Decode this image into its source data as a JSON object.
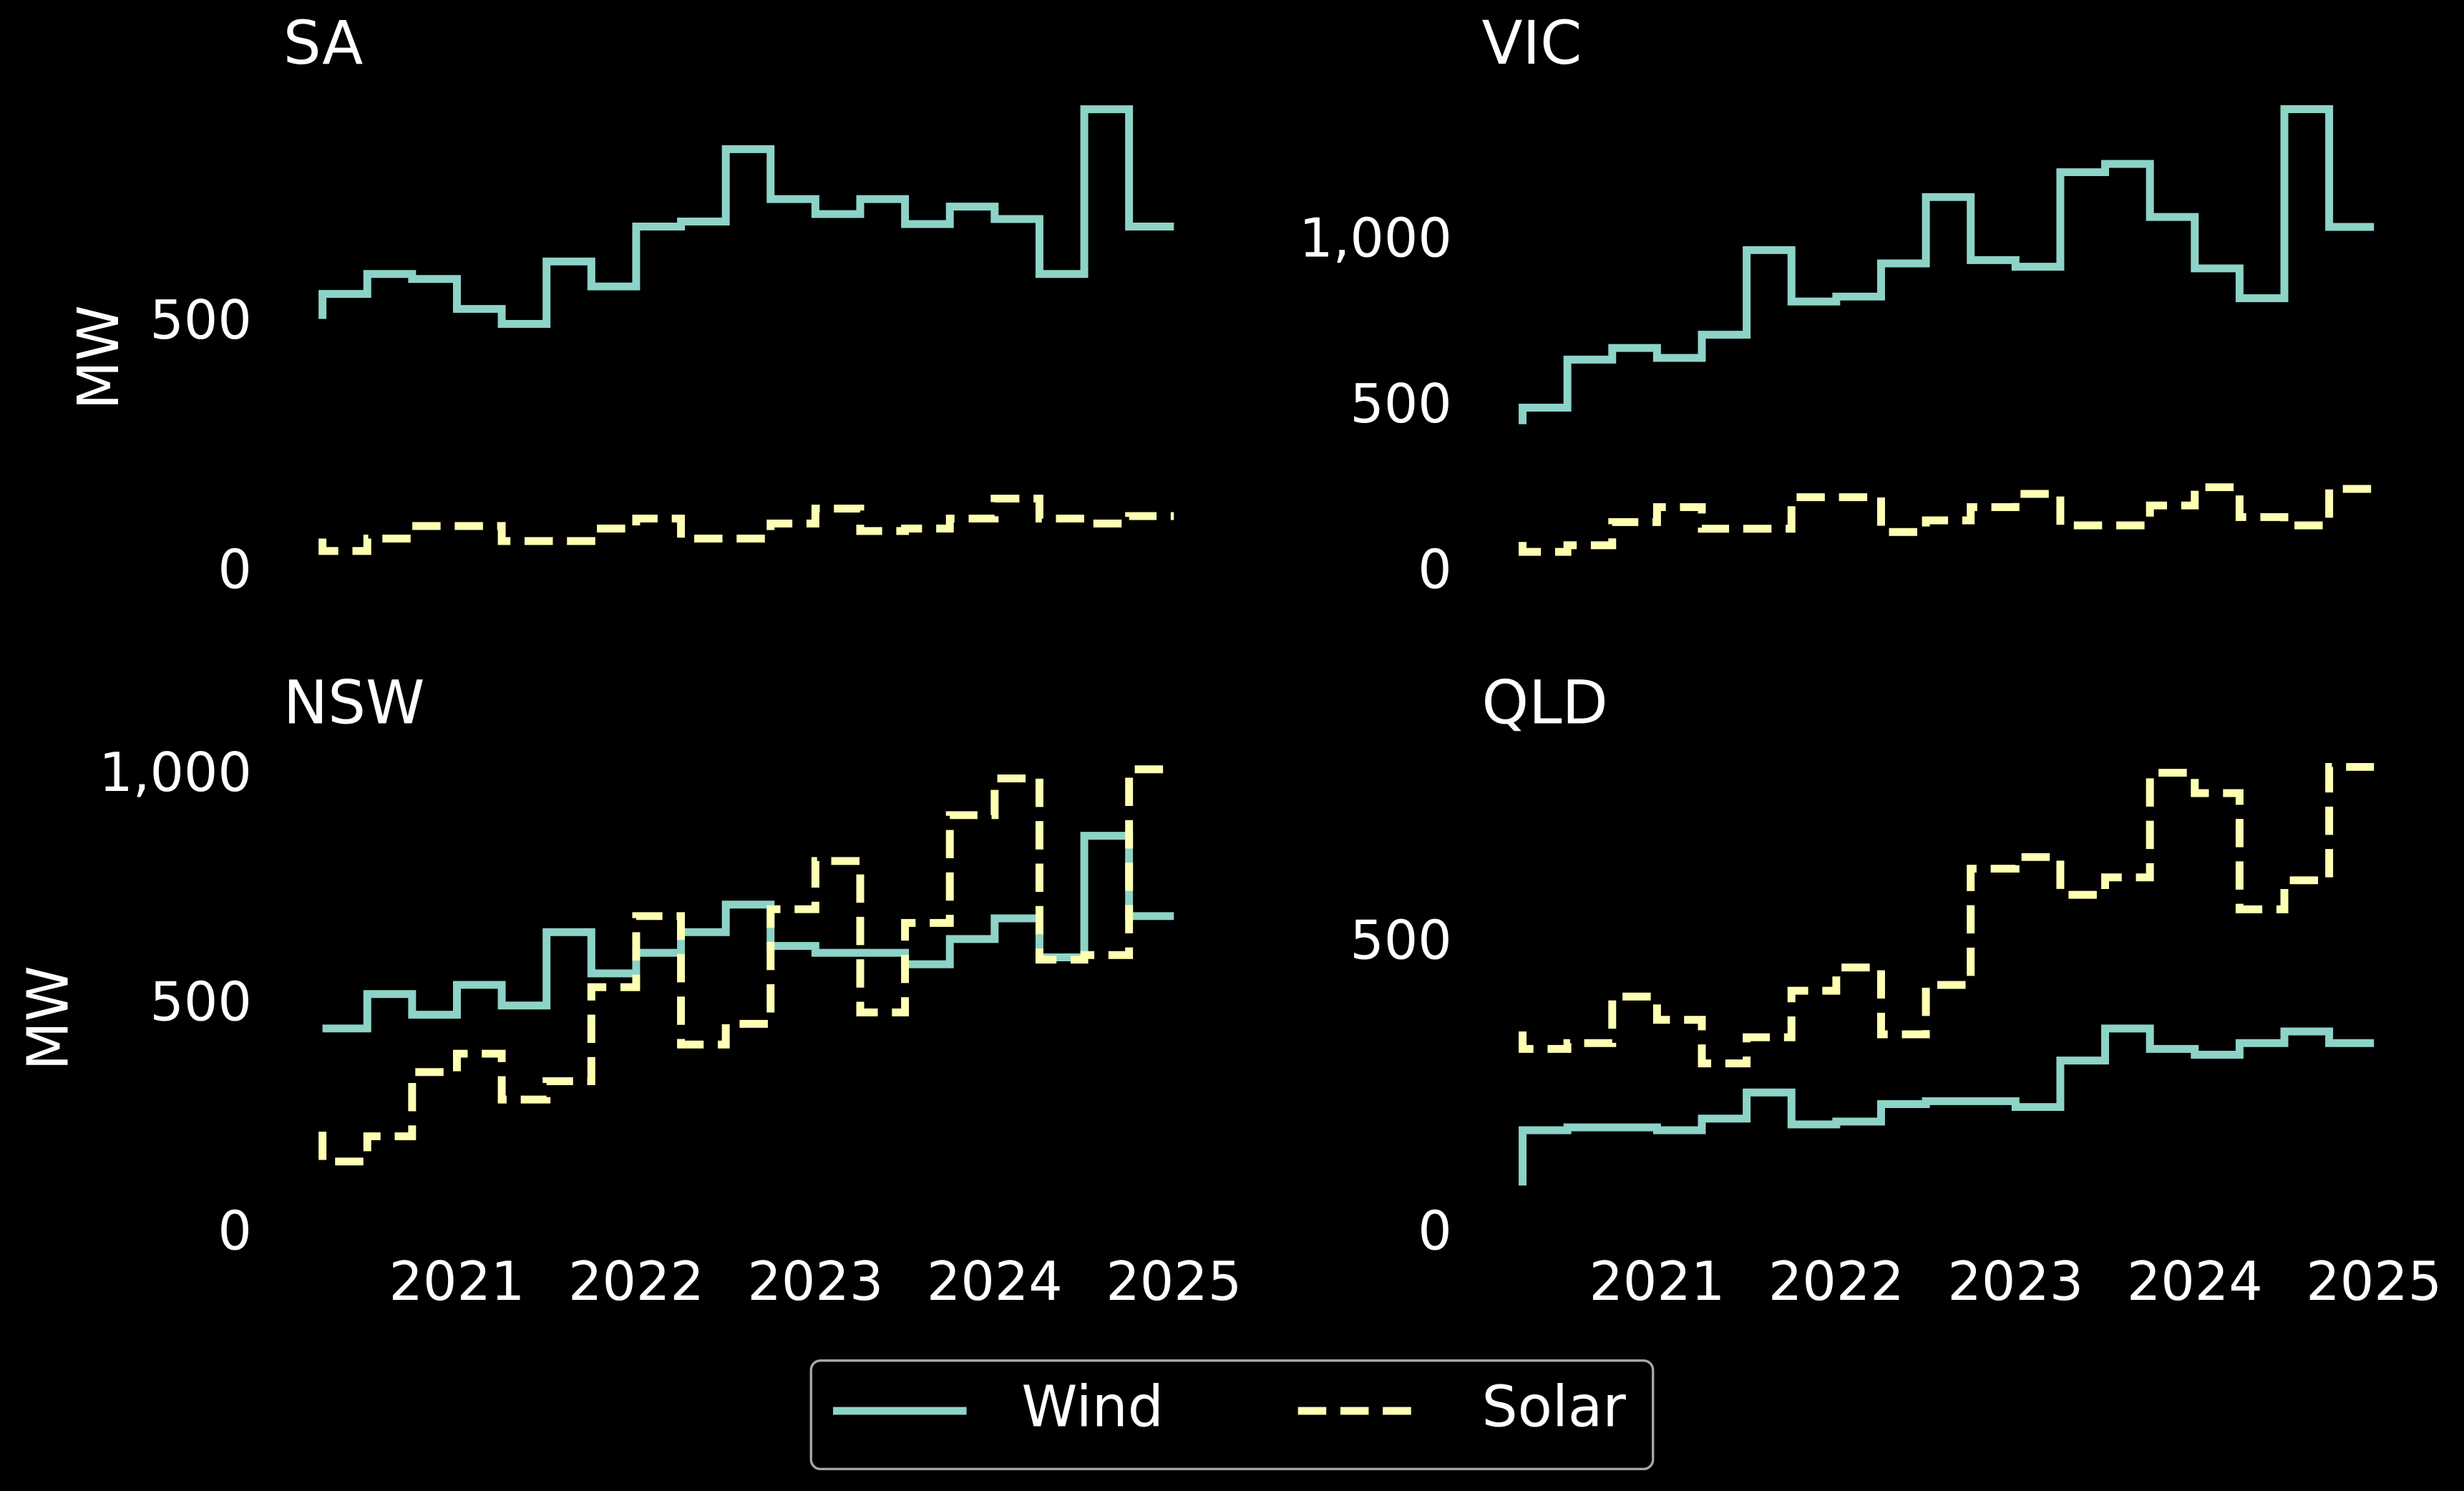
{
  "chart_data": [
    {
      "type": "line",
      "step": "pre",
      "title": "SA",
      "ylabel": "MW",
      "x": [
        2020.25,
        2020.5,
        2020.75,
        2021,
        2021.25,
        2021.5,
        2021.75,
        2022,
        2022.25,
        2022.5,
        2022.75,
        2023,
        2023.25,
        2023.5,
        2023.75,
        2024,
        2024.25,
        2024.5,
        2024.75,
        2025
      ],
      "xlim": [
        2020.25,
        2025
      ],
      "ylim": [
        0,
        960
      ],
      "yticks": [
        0,
        500
      ],
      "series": [
        {
          "name": "Wind",
          "color": "#8dd3c7",
          "linestyle": "solid",
          "values": [
            510,
            560,
            600,
            590,
            530,
            500,
            625,
            575,
            695,
            705,
            850,
            750,
            720,
            750,
            700,
            735,
            710,
            600,
            930,
            695
          ]
        },
        {
          "name": "Solar",
          "color": "#ffffb3",
          "linestyle": "dashed",
          "values": [
            70,
            45,
            70,
            95,
            95,
            65,
            65,
            90,
            110,
            70,
            70,
            100,
            130,
            85,
            90,
            110,
            150,
            110,
            100,
            115
          ]
        }
      ]
    },
    {
      "type": "line",
      "step": "pre",
      "title": "VIC",
      "x": [
        2020.25,
        2020.5,
        2020.75,
        2021,
        2021.25,
        2021.5,
        2021.75,
        2022,
        2022.25,
        2022.5,
        2022.75,
        2023,
        2023.25,
        2023.5,
        2023.75,
        2024,
        2024.25,
        2024.5,
        2024.75,
        2025
      ],
      "xlim": [
        2020.25,
        2025
      ],
      "ylim": [
        0,
        1445
      ],
      "yticks": [
        0,
        500,
        {
          "value": 1000,
          "label": "1,000"
        }
      ],
      "series": [
        {
          "name": "Wind",
          "color": "#8dd3c7",
          "linestyle": "solid",
          "values": [
            450,
            500,
            645,
            680,
            650,
            720,
            975,
            820,
            835,
            935,
            1135,
            945,
            925,
            1210,
            1235,
            1075,
            920,
            830,
            1400,
            1045
          ]
        },
        {
          "name": "Solar",
          "color": "#ffffb3",
          "linestyle": "dashed",
          "values": [
            95,
            65,
            85,
            155,
            200,
            135,
            135,
            230,
            230,
            125,
            160,
            200,
            240,
            145,
            145,
            205,
            260,
            170,
            145,
            255
          ]
        }
      ]
    },
    {
      "type": "line",
      "step": "pre",
      "title": "NSW",
      "ylabel": "MW",
      "x": [
        2020.25,
        2020.5,
        2020.75,
        2021,
        2021.25,
        2021.5,
        2021.75,
        2022,
        2022.25,
        2022.5,
        2022.75,
        2023,
        2023.25,
        2023.5,
        2023.75,
        2024,
        2024.25,
        2024.5,
        2024.75,
        2025
      ],
      "xlim": [
        2020.25,
        2025
      ],
      "xticks": [
        2021,
        2022,
        2023,
        2024,
        2025
      ],
      "ylim": [
        0,
        1048
      ],
      "yticks": [
        0,
        500,
        {
          "value": 1000,
          "label": "1,000"
        }
      ],
      "series": [
        {
          "name": "Wind",
          "color": "#8dd3c7",
          "linestyle": "solid",
          "values": [
            450,
            450,
            525,
            480,
            545,
            500,
            660,
            570,
            615,
            660,
            720,
            630,
            615,
            615,
            590,
            645,
            690,
            605,
            870,
            695
          ]
        },
        {
          "name": "Solar",
          "color": "#ffffb3",
          "linestyle": "dashed",
          "values": [
            225,
            160,
            215,
            355,
            395,
            295,
            335,
            540,
            695,
            415,
            460,
            710,
            815,
            485,
            680,
            915,
            995,
            600,
            610,
            1015
          ]
        }
      ]
    },
    {
      "type": "line",
      "step": "pre",
      "title": "QLD",
      "x": [
        2020.25,
        2020.5,
        2020.75,
        2021,
        2021.25,
        2021.5,
        2021.75,
        2022,
        2022.25,
        2022.5,
        2022.75,
        2023,
        2023.25,
        2023.5,
        2023.75,
        2024,
        2024.25,
        2024.5,
        2024.75,
        2025
      ],
      "xlim": [
        2020.25,
        2025
      ],
      "xticks": [
        2021,
        2022,
        2023,
        2024,
        2025
      ],
      "ylim": [
        0,
        827
      ],
      "yticks": [
        0,
        500
      ],
      "series": [
        {
          "name": "Wind",
          "color": "#8dd3c7",
          "linestyle": "solid",
          "values": [
            85,
            180,
            185,
            185,
            180,
            200,
            245,
            190,
            195,
            225,
            230,
            230,
            220,
            300,
            355,
            320,
            310,
            330,
            350,
            330
          ]
        },
        {
          "name": "Solar",
          "color": "#ffffb3",
          "linestyle": "dashed",
          "values": [
            350,
            320,
            330,
            410,
            370,
            295,
            340,
            420,
            460,
            345,
            430,
            630,
            650,
            585,
            615,
            795,
            760,
            560,
            610,
            805
          ]
        }
      ]
    }
  ]
}
